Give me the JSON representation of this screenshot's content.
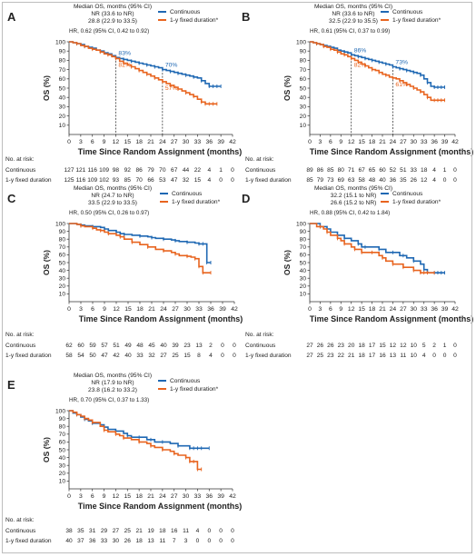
{
  "colors": {
    "continuous": "#1f68b3",
    "fixed": "#e8641f",
    "axis": "#333333",
    "text": "#222222"
  },
  "common": {
    "legend_continuous": "Continuous",
    "legend_fixed": "1-y fixed duration*",
    "ylabel": "OS (%)",
    "xlabel": "Time Since Random Assignment (months)",
    "risk_title": "No. at risk:",
    "risk_continuous": "Continuous",
    "risk_fixed": "1-y fixed duration",
    "x_ticks": [
      "0",
      "3",
      "6",
      "9",
      "12",
      "15",
      "18",
      "21",
      "24",
      "27",
      "30",
      "33",
      "36",
      "39",
      "42"
    ],
    "y_ticks": [
      "10",
      "20",
      "30",
      "40",
      "50",
      "60",
      "70",
      "80",
      "90",
      "100"
    ]
  },
  "chart_data": [
    {
      "panel": "A",
      "type": "line",
      "ci_header": "Median OS, months (95% CI)",
      "median_continuous": "NR (33.6 to NR)",
      "median_fixed": "28.8 (22.9 to 33.5)",
      "hr": "HR, 0.62 (95% CI, 0.42 to 0.92)",
      "xlim": [
        0,
        42
      ],
      "ylim": [
        0,
        100
      ],
      "milestones": [
        {
          "x": 12,
          "y": 83,
          "label": "83%",
          "series": "continuous"
        },
        {
          "x": 12,
          "y": 82,
          "label": "82%",
          "series": "fixed"
        },
        {
          "x": 24,
          "y": 70,
          "label": "70%",
          "series": "continuous"
        },
        {
          "x": 24,
          "y": 57,
          "label": "57%",
          "series": "fixed"
        }
      ],
      "series": [
        {
          "name": "Continuous",
          "key": "continuous",
          "x": [
            0,
            1,
            2,
            3,
            4,
            5,
            6,
            7,
            8,
            9,
            10,
            11,
            12,
            13,
            14,
            15,
            16,
            17,
            18,
            19,
            20,
            21,
            22,
            23,
            24,
            25,
            26,
            27,
            28,
            29,
            30,
            31,
            32,
            33,
            34,
            35,
            36,
            37,
            38,
            39
          ],
          "y": [
            100,
            99,
            98,
            97,
            95,
            94,
            93,
            91,
            90,
            88,
            87,
            85,
            83,
            82,
            81,
            80,
            79,
            78,
            77,
            76,
            75,
            74,
            73,
            72,
            70,
            69,
            68,
            67,
            66,
            65,
            64,
            63,
            62,
            61,
            58,
            55,
            52,
            52,
            52,
            52
          ]
        },
        {
          "name": "1-y fixed duration*",
          "key": "fixed",
          "x": [
            0,
            1,
            2,
            3,
            4,
            5,
            6,
            7,
            8,
            9,
            10,
            11,
            12,
            13,
            14,
            15,
            16,
            17,
            18,
            19,
            20,
            21,
            22,
            23,
            24,
            25,
            26,
            27,
            28,
            29,
            30,
            31,
            32,
            33,
            34,
            35,
            36,
            37,
            38
          ],
          "y": [
            100,
            99,
            98,
            96,
            95,
            93,
            92,
            91,
            89,
            87,
            86,
            84,
            82,
            79,
            77,
            75,
            73,
            71,
            69,
            67,
            65,
            63,
            61,
            59,
            57,
            55,
            53,
            51,
            49,
            47,
            45,
            43,
            41,
            38,
            35,
            33,
            33,
            33,
            33
          ]
        }
      ],
      "risk": {
        "continuous": [
          "127",
          "121",
          "116",
          "109",
          "98",
          "92",
          "86",
          "79",
          "70",
          "67",
          "44",
          "22",
          "4",
          "1",
          "0"
        ],
        "fixed": [
          "125",
          "116",
          "109",
          "102",
          "93",
          "85",
          "70",
          "66",
          "53",
          "47",
          "32",
          "15",
          "4",
          "0",
          "0"
        ]
      }
    },
    {
      "panel": "B",
      "type": "line",
      "ci_header": "Median OS, months (95% CI)",
      "median_continuous": "NR (33.6 to NR)",
      "median_fixed": "32.5 (22.9 to 35.5)",
      "hr": "HR, 0.61 (95% CI, 0.37 to 0.99)",
      "xlim": [
        0,
        42
      ],
      "ylim": [
        0,
        100
      ],
      "milestones": [
        {
          "x": 12,
          "y": 86,
          "label": "86%",
          "series": "continuous"
        },
        {
          "x": 12,
          "y": 82,
          "label": "82%",
          "series": "fixed"
        },
        {
          "x": 24,
          "y": 73,
          "label": "73%",
          "series": "continuous"
        },
        {
          "x": 24,
          "y": 61,
          "label": "61%",
          "series": "fixed"
        }
      ],
      "series": [
        {
          "name": "Continuous",
          "key": "continuous",
          "x": [
            0,
            1,
            2,
            3,
            4,
            5,
            6,
            7,
            8,
            9,
            10,
            11,
            12,
            13,
            14,
            15,
            16,
            17,
            18,
            19,
            20,
            21,
            22,
            23,
            24,
            25,
            26,
            27,
            28,
            29,
            30,
            31,
            32,
            33,
            34,
            35,
            36,
            37,
            38,
            39
          ],
          "y": [
            100,
            99,
            98,
            97,
            96,
            95,
            94,
            93,
            91,
            90,
            89,
            88,
            86,
            85,
            84,
            83,
            82,
            81,
            80,
            79,
            78,
            77,
            76,
            75,
            73,
            72,
            71,
            70,
            69,
            68,
            67,
            66,
            64,
            60,
            56,
            52,
            51,
            51,
            51,
            51
          ]
        },
        {
          "name": "1-y fixed duration*",
          "key": "fixed",
          "x": [
            0,
            1,
            2,
            3,
            4,
            5,
            6,
            7,
            8,
            9,
            10,
            11,
            12,
            13,
            14,
            15,
            16,
            17,
            18,
            19,
            20,
            21,
            22,
            23,
            24,
            25,
            26,
            27,
            28,
            29,
            30,
            31,
            32,
            33,
            34,
            35,
            36,
            37,
            38,
            39
          ],
          "y": [
            100,
            99,
            98,
            97,
            95,
            94,
            92,
            91,
            89,
            87,
            86,
            84,
            82,
            80,
            78,
            76,
            74,
            72,
            70,
            69,
            67,
            65,
            64,
            62,
            61,
            60,
            58,
            56,
            54,
            52,
            50,
            48,
            46,
            43,
            40,
            37,
            37,
            37,
            37,
            37
          ]
        }
      ],
      "risk": {
        "continuous": [
          "89",
          "86",
          "85",
          "80",
          "71",
          "67",
          "65",
          "60",
          "52",
          "51",
          "33",
          "18",
          "4",
          "1",
          "0"
        ],
        "fixed": [
          "85",
          "79",
          "73",
          "69",
          "63",
          "58",
          "48",
          "40",
          "36",
          "35",
          "26",
          "12",
          "4",
          "0",
          "0"
        ]
      }
    },
    {
      "panel": "C",
      "type": "line",
      "ci_header": "Median OS, months (95% CI)",
      "median_continuous": "NR (24.7 to NR)",
      "median_fixed": "33.5 (22.9 to 33.5)",
      "hr": "HR, 0.50 (95% CI, 0.26 to 0.97)",
      "xlim": [
        0,
        42
      ],
      "ylim": [
        0,
        100
      ],
      "milestones": [],
      "series": [
        {
          "name": "Continuous",
          "key": "continuous",
          "x": [
            0,
            2,
            3,
            4,
            6,
            8,
            9,
            10,
            12,
            13,
            14,
            16,
            18,
            20,
            21,
            22,
            24,
            26,
            27,
            28,
            30,
            32,
            33,
            34,
            35,
            36
          ],
          "y": [
            100,
            99,
            98,
            97,
            96,
            95,
            93,
            91,
            89,
            87,
            86,
            85,
            84,
            83,
            82,
            81,
            80,
            79,
            78,
            77,
            76,
            75,
            74,
            74,
            50,
            50
          ]
        },
        {
          "name": "1-y fixed duration*",
          "key": "fixed",
          "x": [
            0,
            2,
            3,
            4,
            6,
            7,
            8,
            9,
            10,
            12,
            13,
            14,
            16,
            18,
            20,
            22,
            24,
            26,
            27,
            28,
            30,
            31,
            32,
            33,
            34,
            36
          ],
          "y": [
            100,
            99,
            97,
            96,
            94,
            92,
            91,
            89,
            87,
            85,
            83,
            80,
            76,
            73,
            70,
            67,
            65,
            63,
            61,
            59,
            58,
            57,
            55,
            45,
            37,
            37
          ]
        }
      ],
      "risk": {
        "continuous": [
          "62",
          "60",
          "59",
          "57",
          "51",
          "49",
          "48",
          "45",
          "40",
          "39",
          "23",
          "13",
          "2",
          "0",
          "0"
        ],
        "fixed": [
          "58",
          "54",
          "50",
          "47",
          "42",
          "40",
          "33",
          "32",
          "27",
          "25",
          "15",
          "8",
          "4",
          "0",
          "0"
        ]
      }
    },
    {
      "panel": "D",
      "type": "line",
      "ci_header": "Median OS, months (95% CI)",
      "median_continuous": "32.2 (15.1 to NR)",
      "median_fixed": "26.6 (15.2 to NR)",
      "hr": "HR, 0.88 (95% CI, 0.42 to 1.84)",
      "xlim": [
        0,
        42
      ],
      "ylim": [
        0,
        100
      ],
      "milestones": [],
      "series": [
        {
          "name": "Continuous",
          "key": "continuous",
          "x": [
            0,
            2,
            3,
            4,
            5,
            6,
            8,
            9,
            10,
            12,
            14,
            15,
            16,
            18,
            20,
            22,
            24,
            26,
            27,
            28,
            30,
            32,
            33,
            34,
            36,
            37,
            38,
            39
          ],
          "y": [
            100,
            100,
            96,
            96,
            93,
            89,
            85,
            85,
            81,
            78,
            74,
            70,
            70,
            70,
            67,
            63,
            63,
            59,
            59,
            56,
            52,
            48,
            41,
            37,
            37,
            37,
            37,
            37
          ]
        },
        {
          "name": "1-y fixed duration*",
          "key": "fixed",
          "x": [
            0,
            2,
            3,
            4,
            5,
            6,
            8,
            9,
            10,
            12,
            13,
            14,
            15,
            16,
            18,
            20,
            21,
            22,
            24,
            26,
            27,
            28,
            30,
            32,
            33,
            34,
            36
          ],
          "y": [
            100,
            96,
            96,
            93,
            89,
            85,
            81,
            78,
            74,
            70,
            67,
            67,
            63,
            63,
            63,
            59,
            56,
            52,
            48,
            48,
            44,
            44,
            40,
            37,
            37,
            37,
            37
          ]
        }
      ],
      "risk": {
        "continuous": [
          "27",
          "26",
          "26",
          "23",
          "20",
          "18",
          "17",
          "15",
          "12",
          "12",
          "10",
          "5",
          "2",
          "1",
          "0"
        ],
        "fixed": [
          "27",
          "25",
          "23",
          "22",
          "21",
          "18",
          "17",
          "16",
          "13",
          "11",
          "10",
          "4",
          "0",
          "0",
          "0"
        ]
      }
    },
    {
      "panel": "E",
      "type": "line",
      "ci_header": "Median OS, months (95% CI)",
      "median_continuous": "NR (17.9 to NR)",
      "median_fixed": "23.8 (16.2 to 33.2)",
      "hr": "HR, 0.70 (95% CI, 0.37 to 1.33)",
      "xlim": [
        0,
        42
      ],
      "ylim": [
        0,
        100
      ],
      "milestones": [],
      "series": [
        {
          "name": "Continuous",
          "key": "continuous",
          "x": [
            0,
            1,
            2,
            3,
            4,
            5,
            6,
            8,
            9,
            10,
            12,
            14,
            15,
            16,
            18,
            20,
            21,
            22,
            24,
            26,
            28,
            30,
            31,
            32,
            33,
            34,
            36
          ],
          "y": [
            100,
            97,
            95,
            92,
            89,
            87,
            84,
            82,
            79,
            76,
            74,
            71,
            68,
            66,
            66,
            63,
            63,
            60,
            60,
            58,
            55,
            55,
            52,
            52,
            52,
            52,
            52
          ]
        },
        {
          "name": "1-y fixed duration*",
          "key": "fixed",
          "x": [
            0,
            1,
            2,
            3,
            4,
            5,
            6,
            8,
            9,
            10,
            12,
            13,
            14,
            16,
            18,
            20,
            21,
            22,
            24,
            26,
            27,
            28,
            30,
            31,
            32,
            33,
            34
          ],
          "y": [
            100,
            98,
            95,
            93,
            90,
            88,
            85,
            80,
            75,
            73,
            70,
            68,
            65,
            63,
            60,
            58,
            55,
            53,
            50,
            48,
            45,
            43,
            40,
            35,
            35,
            25,
            25
          ]
        }
      ],
      "risk": {
        "continuous": [
          "38",
          "35",
          "31",
          "29",
          "27",
          "25",
          "21",
          "19",
          "18",
          "16",
          "11",
          "4",
          "0",
          "0",
          "0"
        ],
        "fixed": [
          "40",
          "37",
          "36",
          "33",
          "30",
          "26",
          "18",
          "13",
          "11",
          "7",
          "3",
          "0",
          "0",
          "0",
          "0"
        ]
      }
    }
  ]
}
